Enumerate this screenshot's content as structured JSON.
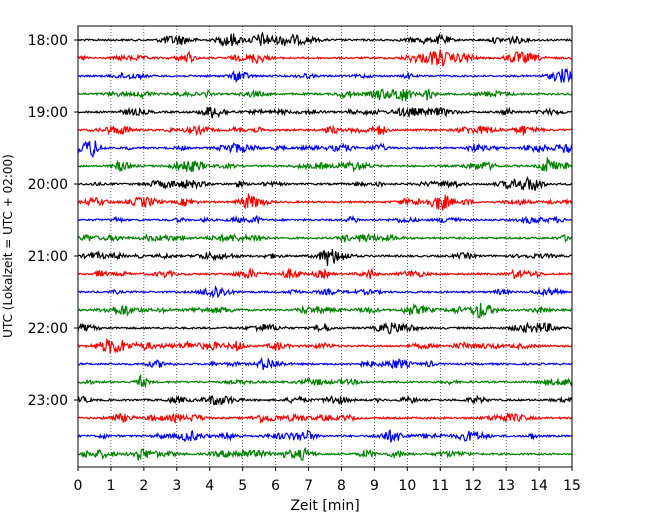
{
  "chart_data": {
    "type": "line",
    "title": "",
    "xlabel": "Zeit  [min]",
    "ylabel": "UTC (Lokalzeit = UTC + 02:00)",
    "xlim": [
      0,
      15
    ],
    "x_ticks": [
      "0",
      "1",
      "2",
      "3",
      "4",
      "5",
      "6",
      "7",
      "8",
      "9",
      "10",
      "11",
      "12",
      "13",
      "14",
      "15"
    ],
    "y_tick_labels": [
      "18:00",
      "19:00",
      "20:00",
      "21:00",
      "22:00",
      "23:00"
    ],
    "y_tick_trace_index": [
      0,
      4,
      8,
      12,
      16,
      20
    ],
    "trace_interval_minutes": 15,
    "grid": {
      "x": true,
      "style": "dotted"
    },
    "series_colors": [
      "#000000",
      "#ff0000",
      "#0000ff",
      "#008000"
    ],
    "traces": [
      {
        "start": "18:00",
        "color": "#000000"
      },
      {
        "start": "18:15",
        "color": "#ff0000"
      },
      {
        "start": "18:30",
        "color": "#0000ff"
      },
      {
        "start": "18:45",
        "color": "#008000"
      },
      {
        "start": "19:00",
        "color": "#000000"
      },
      {
        "start": "19:15",
        "color": "#ff0000"
      },
      {
        "start": "19:30",
        "color": "#0000ff"
      },
      {
        "start": "19:45",
        "color": "#008000"
      },
      {
        "start": "20:00",
        "color": "#000000"
      },
      {
        "start": "20:15",
        "color": "#ff0000"
      },
      {
        "start": "20:30",
        "color": "#0000ff"
      },
      {
        "start": "20:45",
        "color": "#008000"
      },
      {
        "start": "21:00",
        "color": "#000000"
      },
      {
        "start": "21:15",
        "color": "#ff0000"
      },
      {
        "start": "21:30",
        "color": "#0000ff"
      },
      {
        "start": "21:45",
        "color": "#008000"
      },
      {
        "start": "22:00",
        "color": "#000000"
      },
      {
        "start": "22:15",
        "color": "#ff0000"
      },
      {
        "start": "22:30",
        "color": "#0000ff"
      },
      {
        "start": "22:45",
        "color": "#008000"
      },
      {
        "start": "23:00",
        "color": "#000000"
      },
      {
        "start": "23:15",
        "color": "#ff0000"
      },
      {
        "start": "23:30",
        "color": "#0000ff"
      },
      {
        "start": "23:45",
        "color": "#008000"
      }
    ]
  }
}
